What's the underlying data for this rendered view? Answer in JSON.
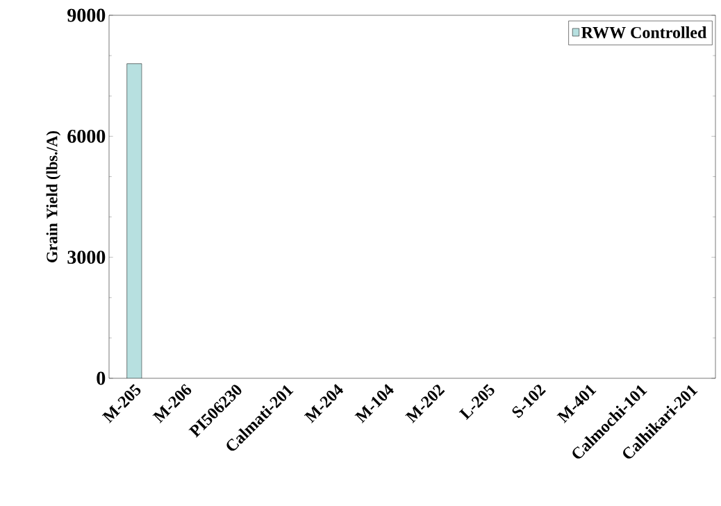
{
  "chart_data": {
    "type": "bar",
    "ylabel": "Grain Yield (lbs./A)",
    "categories": [
      "M-205",
      "M-206",
      "PI506230",
      "Calmati-201",
      "M-204",
      "M-104",
      "M-202",
      "L-205",
      "S-102",
      "M-401",
      "Calmochi-101",
      "Calhikari-201"
    ],
    "series": [
      {
        "name": "RWW Controlled",
        "color": "#b7e0e0",
        "values": [
          7800,
          null,
          null,
          null,
          null,
          null,
          null,
          null,
          null,
          null,
          null,
          null
        ]
      }
    ],
    "ylim": [
      0,
      9000
    ],
    "yticks": [
      0,
      3000,
      6000,
      9000
    ],
    "legend": "top right",
    "grid": false
  }
}
